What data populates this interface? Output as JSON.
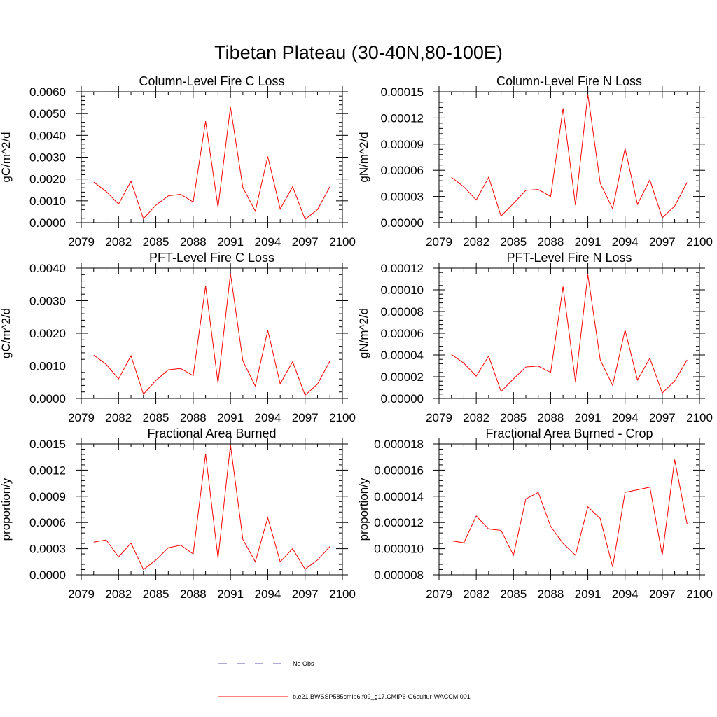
{
  "main_title": "Tibetan Plateau (30-40N,80-100E)",
  "colors": {
    "series": "#ff0000",
    "obs": "#5a5aa8",
    "axis": "#000000"
  },
  "legend": {
    "position": "bottom-center",
    "items": [
      {
        "label": "No Obs",
        "style": "dashed",
        "color": "#5a5aa8"
      },
      {
        "label": "b.e21.BWSSP585cmip6.f09_g17.CMIP6-G6sulfur-WACCM.001",
        "style": "solid",
        "color": "#ff0000"
      }
    ]
  },
  "chart_data": [
    {
      "type": "line",
      "title": "Column-Level Fire C Loss",
      "ylabel": "gC/m^2/d",
      "xlim": [
        2079,
        2100
      ],
      "ylim": [
        0,
        0.006
      ],
      "xticks": [
        "2079",
        "2082",
        "2085",
        "2088",
        "2091",
        "2094",
        "2097",
        "2100"
      ],
      "yticks": [
        "0.0000",
        "0.0010",
        "0.0020",
        "0.0030",
        "0.0040",
        "0.0050",
        "0.0060"
      ],
      "grid": false,
      "x": [
        2080,
        2081,
        2082,
        2083,
        2084,
        2085,
        2086,
        2087,
        2088,
        2089,
        2090,
        2091,
        2092,
        2093,
        2094,
        2095,
        2096,
        2097,
        2098,
        2099
      ],
      "series": [
        {
          "values": [
            0.00186,
            0.00143,
            0.00085,
            0.0019,
            0.00018,
            0.0008,
            0.00123,
            0.0013,
            0.00095,
            0.00465,
            0.0007,
            0.0053,
            0.0016,
            0.00053,
            0.00303,
            0.00063,
            0.00165,
            0.00015,
            0.0006,
            0.00165
          ]
        }
      ]
    },
    {
      "type": "line",
      "title": "Column-Level Fire N Loss",
      "ylabel": "gN/m^2/d",
      "xlim": [
        2079,
        2100
      ],
      "ylim": [
        0,
        0.00015
      ],
      "xticks": [
        "2079",
        "2082",
        "2085",
        "2088",
        "2091",
        "2094",
        "2097",
        "2100"
      ],
      "yticks": [
        "0.00000",
        "0.00003",
        "0.00006",
        "0.00009",
        "0.00012",
        "0.00015"
      ],
      "grid": false,
      "x": [
        2080,
        2081,
        2082,
        2083,
        2084,
        2085,
        2086,
        2087,
        2088,
        2089,
        2090,
        2091,
        2092,
        2093,
        2094,
        2095,
        2096,
        2097,
        2098,
        2099
      ],
      "series": [
        {
          "values": [
            5.2e-05,
            4.1e-05,
            2.6e-05,
            5.2e-05,
            7.5e-06,
            2.2e-05,
            3.7e-05,
            3.8e-05,
            3e-05,
            0.000131,
            2e-05,
            0.000147,
            4.5e-05,
            1.6e-05,
            8.5e-05,
            2.1e-05,
            4.9e-05,
            5.5e-06,
            1.9e-05,
            4.6e-05
          ]
        }
      ]
    },
    {
      "type": "line",
      "title": "PFT-Level Fire C Loss",
      "ylabel": "gC/m^2/d",
      "xlim": [
        2079,
        2100
      ],
      "ylim": [
        0,
        0.004
      ],
      "xticks": [
        "2079",
        "2082",
        "2085",
        "2088",
        "2091",
        "2094",
        "2097",
        "2100"
      ],
      "yticks": [
        "0.0000",
        "0.0010",
        "0.0020",
        "0.0030",
        "0.0040"
      ],
      "grid": false,
      "x": [
        2080,
        2081,
        2082,
        2083,
        2084,
        2085,
        2086,
        2087,
        2088,
        2089,
        2090,
        2091,
        2092,
        2093,
        2094,
        2095,
        2096,
        2097,
        2098,
        2099
      ],
      "series": [
        {
          "values": [
            0.00133,
            0.00105,
            0.0006,
            0.00131,
            0.00013,
            0.00055,
            0.00088,
            0.00092,
            0.0007,
            0.00345,
            0.00047,
            0.00383,
            0.00115,
            0.00038,
            0.00209,
            0.00045,
            0.00113,
            0.0001,
            0.00044,
            0.00115
          ]
        }
      ]
    },
    {
      "type": "line",
      "title": "PFT-Level Fire N Loss",
      "ylabel": "gN/m^2/d",
      "xlim": [
        2079,
        2100
      ],
      "ylim": [
        0,
        0.00012
      ],
      "xticks": [
        "2079",
        "2082",
        "2085",
        "2088",
        "2091",
        "2094",
        "2097",
        "2100"
      ],
      "yticks": [
        "0.00000",
        "0.00002",
        "0.00004",
        "0.00006",
        "0.00008",
        "0.00010",
        "0.00012"
      ],
      "grid": false,
      "x": [
        2080,
        2081,
        2082,
        2083,
        2084,
        2085,
        2086,
        2087,
        2088,
        2089,
        2090,
        2091,
        2092,
        2093,
        2094,
        2095,
        2096,
        2097,
        2098,
        2099
      ],
      "series": [
        {
          "values": [
            4.05e-05,
            3.25e-05,
            2.05e-05,
            3.9e-05,
            6.5e-06,
            1.8e-05,
            2.9e-05,
            2.98e-05,
            2.4e-05,
            0.000103,
            1.55e-05,
            0.000114,
            3.55e-05,
            1.2e-05,
            6.3e-05,
            1.7e-05,
            3.7e-05,
            5e-06,
            1.6e-05,
            3.55e-05
          ]
        }
      ]
    },
    {
      "type": "line",
      "title": "Fractional Area Burned",
      "ylabel": "proportion/y",
      "xlim": [
        2079,
        2100
      ],
      "ylim": [
        0,
        0.0015
      ],
      "xticks": [
        "2079",
        "2082",
        "2085",
        "2088",
        "2091",
        "2094",
        "2097",
        "2100"
      ],
      "yticks": [
        "0.0000",
        "0.0003",
        "0.0006",
        "0.0009",
        "0.0012",
        "0.0015"
      ],
      "grid": false,
      "x": [
        2080,
        2081,
        2082,
        2083,
        2084,
        2085,
        2086,
        2087,
        2088,
        2089,
        2090,
        2091,
        2092,
        2093,
        2094,
        2095,
        2096,
        2097,
        2098,
        2099
      ],
      "series": [
        {
          "values": [
            0.000375,
            0.0004,
            0.000205,
            0.000365,
            6e-05,
            0.00017,
            0.00031,
            0.00034,
            0.00024,
            0.001385,
            0.00019,
            0.00149,
            0.000405,
            0.00015,
            0.000655,
            0.00015,
            0.0003,
            6.5e-05,
            0.00017,
            0.000325
          ]
        }
      ]
    },
    {
      "type": "line",
      "title": "Fractional Area Burned - Crop",
      "ylabel": "proportion/y",
      "xlim": [
        2079,
        2100
      ],
      "ylim": [
        8e-06,
        1.8e-05
      ],
      "xticks": [
        "2079",
        "2082",
        "2085",
        "2088",
        "2091",
        "2094",
        "2097",
        "2100"
      ],
      "yticks": [
        "0.000008",
        "0.000010",
        "0.000012",
        "0.000014",
        "0.000016",
        "0.000018"
      ],
      "grid": false,
      "x": [
        2080,
        2081,
        2082,
        2083,
        2084,
        2085,
        2086,
        2087,
        2088,
        2089,
        2090,
        2091,
        2092,
        2093,
        2094,
        2095,
        2096,
        2097,
        2098,
        2099
      ],
      "series": [
        {
          "values": [
            1.06e-05,
            1.045e-05,
            1.25e-05,
            1.15e-05,
            1.14e-05,
            9.5e-06,
            1.38e-05,
            1.43e-05,
            1.17e-05,
            1.04e-05,
            9.5e-06,
            1.32e-05,
            1.23e-05,
            8.6e-06,
            1.43e-05,
            1.45e-05,
            1.47e-05,
            9.5e-06,
            1.68e-05,
            1.19e-05
          ]
        }
      ]
    }
  ]
}
